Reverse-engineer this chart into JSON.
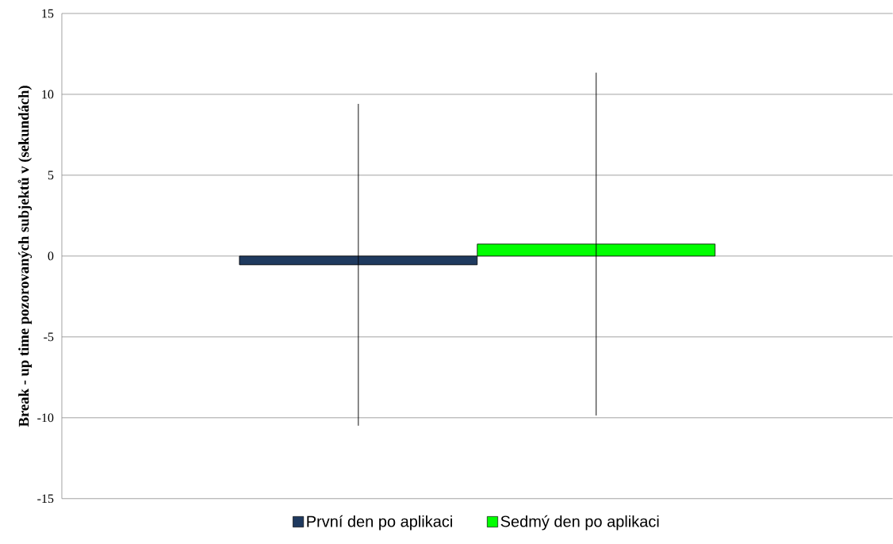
{
  "chart_data": {
    "type": "bar",
    "ylabel": "Break - up time pozorovaných subjektů v (sekundách)",
    "categories": [
      null
    ],
    "series": [
      {
        "name": "První den po aplikaci",
        "color": "#1f3a5f",
        "values": [
          -0.54
        ],
        "errors": [
          9.95
        ]
      },
      {
        "name": "Sedmý den po aplikaci",
        "color": "#00ff00",
        "values": [
          0.74
        ],
        "errors": [
          10.6
        ]
      }
    ],
    "ylim": [
      -15,
      15
    ],
    "yticks": [
      -15,
      -10,
      -5,
      0,
      5,
      10,
      15
    ],
    "grid": "y",
    "legend": "bottom"
  }
}
